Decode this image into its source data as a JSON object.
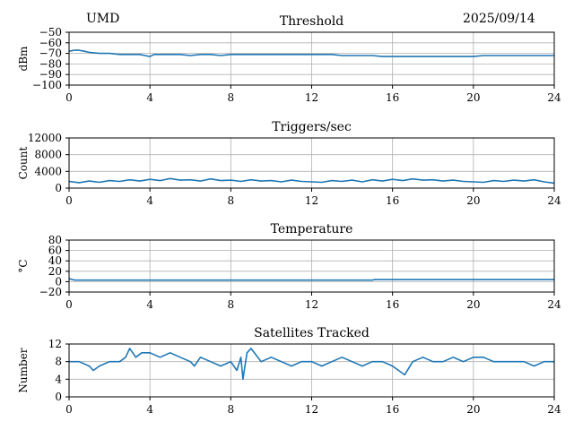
{
  "header": {
    "station": "UMD",
    "date": "2025/09/14"
  },
  "chart_data": [
    {
      "type": "line",
      "title": "Threshold",
      "ylabel": "dBm",
      "xlim": [
        0,
        24
      ],
      "ylim": [
        -100,
        -50
      ],
      "xticks": [
        0,
        4,
        8,
        12,
        16,
        20,
        24
      ],
      "yticks": [
        -100,
        -90,
        -80,
        -70,
        -60,
        -50
      ],
      "grid": true,
      "x": [
        0,
        0.25,
        0.5,
        0.75,
        1,
        1.5,
        2,
        2.5,
        3,
        3.5,
        4,
        4.2,
        4.5,
        5,
        5.5,
        6,
        6.5,
        7,
        7.5,
        8,
        8.5,
        9,
        9.5,
        10,
        10.5,
        11,
        11.5,
        12,
        12.5,
        13,
        13.5,
        14,
        14.5,
        15,
        15.5,
        16,
        16.5,
        17,
        17.5,
        18,
        18.5,
        19,
        19.5,
        20,
        20.5,
        21,
        21.5,
        22,
        22.5,
        23,
        23.5,
        24
      ],
      "series": [
        {
          "values": [
            -68,
            -67,
            -67,
            -68,
            -69,
            -70,
            -70,
            -71,
            -71,
            -71,
            -73,
            -71,
            -71,
            -71,
            -71,
            -72,
            -71,
            -71,
            -72,
            -71,
            -71,
            -71,
            -71,
            -71,
            -71,
            -71,
            -71,
            -71,
            -71,
            -71,
            -72,
            -72,
            -72,
            -72,
            -73,
            -73,
            -73,
            -73,
            -73,
            -73,
            -73,
            -73,
            -73,
            -73,
            -72,
            -72,
            -72,
            -72,
            -72,
            -72,
            -72,
            -72
          ]
        }
      ]
    },
    {
      "type": "line",
      "title": "Triggers/sec",
      "ylabel": "Count",
      "xlim": [
        0,
        24
      ],
      "ylim": [
        0,
        12000
      ],
      "xticks": [
        0,
        4,
        8,
        12,
        16,
        20,
        24
      ],
      "yticks": [
        0,
        4000,
        8000,
        12000
      ],
      "grid": true,
      "x": [
        0,
        0.5,
        1,
        1.5,
        2,
        2.5,
        3,
        3.5,
        4,
        4.5,
        5,
        5.5,
        6,
        6.5,
        7,
        7.5,
        8,
        8.5,
        9,
        9.5,
        10,
        10.5,
        11,
        11.5,
        12,
        12.5,
        13,
        13.5,
        14,
        14.5,
        15,
        15.5,
        16,
        16.5,
        17,
        17.5,
        18,
        18.5,
        19,
        19.5,
        20,
        20.5,
        21,
        21.5,
        22,
        22.5,
        23,
        23.5,
        24
      ],
      "series": [
        {
          "values": [
            1600,
            1300,
            1700,
            1400,
            1800,
            1600,
            2000,
            1700,
            2100,
            1800,
            2300,
            1900,
            2000,
            1700,
            2200,
            1800,
            1900,
            1600,
            2000,
            1700,
            1800,
            1500,
            1900,
            1600,
            1500,
            1400,
            1800,
            1600,
            1900,
            1500,
            2000,
            1700,
            2100,
            1800,
            2200,
            1900,
            2000,
            1700,
            1900,
            1600,
            1500,
            1400,
            1800,
            1600,
            1900,
            1700,
            2000,
            1500,
            1200
          ]
        }
      ]
    },
    {
      "type": "line",
      "title": "Temperature",
      "ylabel": "°C",
      "xlim": [
        0,
        24
      ],
      "ylim": [
        -20,
        80
      ],
      "xticks": [
        0,
        4,
        8,
        12,
        16,
        20,
        24
      ],
      "yticks": [
        -20,
        0,
        20,
        40,
        60,
        80
      ],
      "grid": true,
      "x": [
        0,
        0.15,
        0.3,
        2,
        4,
        6,
        8,
        10,
        12,
        14,
        15,
        15.1,
        16,
        18,
        20,
        22,
        24
      ],
      "series": [
        {
          "values": [
            6,
            4,
            3,
            3,
            3,
            3,
            3,
            3,
            3,
            3,
            3,
            4,
            4,
            4,
            4,
            4,
            4
          ]
        }
      ]
    },
    {
      "type": "line",
      "title": "Satellites Tracked",
      "ylabel": "Number",
      "xlim": [
        0,
        24
      ],
      "ylim": [
        0,
        12
      ],
      "xticks": [
        0,
        4,
        8,
        12,
        16,
        20,
        24
      ],
      "yticks": [
        0,
        4,
        8,
        12
      ],
      "grid": true,
      "x": [
        0,
        0.5,
        1,
        1.2,
        1.5,
        2,
        2.5,
        2.8,
        3,
        3.3,
        3.6,
        4,
        4.5,
        5,
        5.5,
        6,
        6.2,
        6.5,
        7,
        7.5,
        8,
        8.3,
        8.5,
        8.6,
        8.8,
        9,
        9.5,
        10,
        10.5,
        11,
        11.5,
        12,
        12.5,
        13,
        13.5,
        14,
        14.5,
        15,
        15.5,
        16,
        16.3,
        16.6,
        17,
        17.5,
        18,
        18.5,
        19,
        19.5,
        20,
        20.5,
        21,
        21.5,
        22,
        22.5,
        23,
        23.5,
        24
      ],
      "series": [
        {
          "values": [
            8,
            8,
            7,
            6,
            7,
            8,
            8,
            9,
            11,
            9,
            10,
            10,
            9,
            10,
            9,
            8,
            7,
            9,
            8,
            7,
            8,
            6,
            9,
            4,
            10,
            11,
            8,
            9,
            8,
            7,
            8,
            8,
            7,
            8,
            9,
            8,
            7,
            8,
            8,
            7,
            6,
            5,
            8,
            9,
            8,
            8,
            9,
            8,
            9,
            9,
            8,
            8,
            8,
            8,
            7,
            8,
            8
          ]
        }
      ]
    }
  ]
}
